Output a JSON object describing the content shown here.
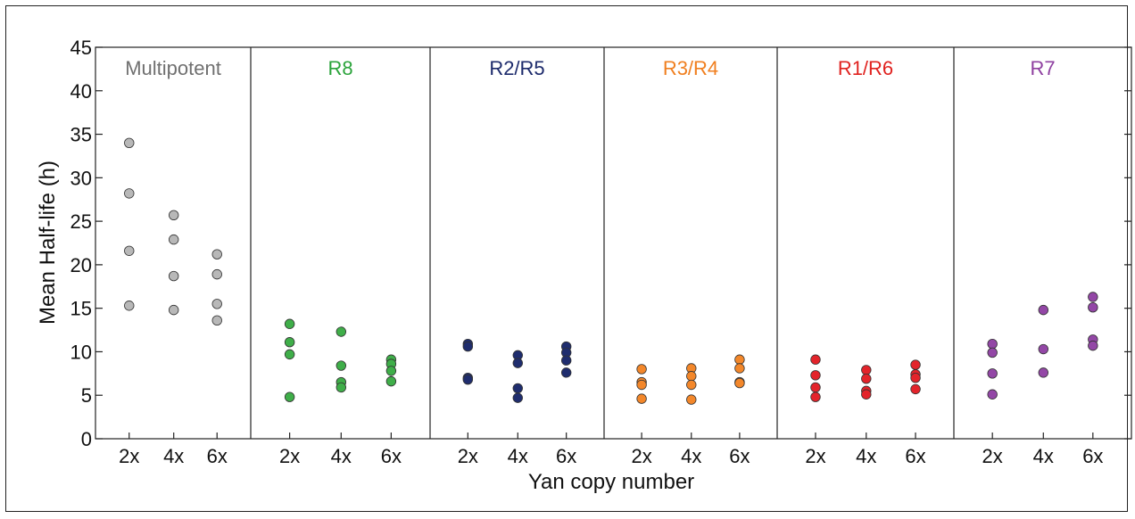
{
  "chart_data": {
    "type": "scatter",
    "ylabel": "Mean Half-life (h)",
    "xlabel": "Yan copy number",
    "ylim": [
      0,
      45
    ],
    "yticks": [
      0,
      5,
      10,
      15,
      20,
      25,
      30,
      35,
      40,
      45
    ],
    "categories": [
      "2x",
      "4x",
      "6x"
    ],
    "panels": [
      {
        "name": "Multipotent",
        "color": "#707070",
        "fill": "#b8b8b8",
        "points": {
          "2x": [
            34.0,
            28.2,
            21.6,
            15.3
          ],
          "4x": [
            25.7,
            22.9,
            18.7,
            14.8
          ],
          "6x": [
            21.2,
            18.9,
            15.5,
            13.6
          ]
        }
      },
      {
        "name": "R8",
        "color": "#2aa33a",
        "fill": "#3fae49",
        "points": {
          "2x": [
            13.2,
            11.1,
            9.7,
            4.8
          ],
          "4x": [
            12.3,
            8.4,
            6.5,
            5.9
          ],
          "6x": [
            9.1,
            8.6,
            7.8,
            6.6
          ]
        }
      },
      {
        "name": "R2/R5",
        "color": "#1c2a6b",
        "fill": "#1f2d6e",
        "points": {
          "2x": [
            10.9,
            10.6,
            7.0,
            6.8
          ],
          "4x": [
            9.6,
            8.7,
            5.8,
            4.7
          ],
          "6x": [
            10.6,
            9.9,
            9.0,
            7.6
          ]
        }
      },
      {
        "name": "R3/R4",
        "color": "#f07f1f",
        "fill": "#f3872a",
        "points": {
          "2x": [
            8.0,
            6.5,
            6.2,
            4.6
          ],
          "4x": [
            8.1,
            7.2,
            6.2,
            4.5
          ],
          "6x": [
            9.1,
            8.1,
            6.5,
            6.4
          ]
        }
      },
      {
        "name": "R1/R6",
        "color": "#e0221f",
        "fill": "#e3242b",
        "points": {
          "2x": [
            9.1,
            7.3,
            5.9,
            4.8
          ],
          "4x": [
            7.9,
            6.9,
            5.5,
            5.1
          ],
          "6x": [
            8.5,
            7.4,
            7.0,
            5.7
          ]
        }
      },
      {
        "name": "R7",
        "color": "#8e3fa0",
        "fill": "#9347a6",
        "points": {
          "2x": [
            10.9,
            9.9,
            7.5,
            5.1
          ],
          "4x": [
            14.8,
            10.3,
            7.6
          ],
          "6x": [
            16.3,
            15.1,
            11.4,
            10.7
          ]
        }
      }
    ]
  }
}
